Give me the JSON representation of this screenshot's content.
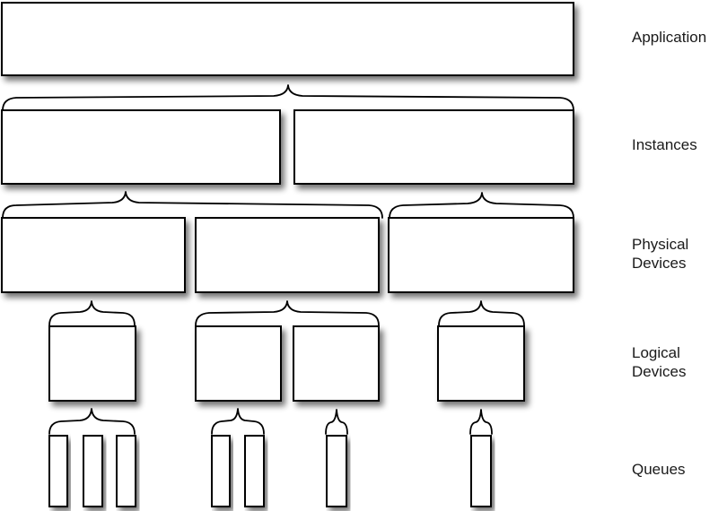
{
  "layers": [
    {
      "id": "application",
      "lines": [
        "Application"
      ]
    },
    {
      "id": "instances",
      "lines": [
        "Instances"
      ]
    },
    {
      "id": "physical-devices",
      "lines": [
        "Physical",
        "Devices"
      ]
    },
    {
      "id": "logical-devices",
      "lines": [
        "Logical",
        "Devices"
      ]
    },
    {
      "id": "queues",
      "lines": [
        "Queues"
      ]
    }
  ],
  "hierarchy": {
    "application": 1,
    "instances_per_application": 2,
    "physical_devices_per_instance": [
      2,
      1
    ],
    "logical_devices_per_physical_device": [
      1,
      2,
      1
    ],
    "queues_per_logical_device": [
      3,
      2,
      1,
      1
    ]
  }
}
